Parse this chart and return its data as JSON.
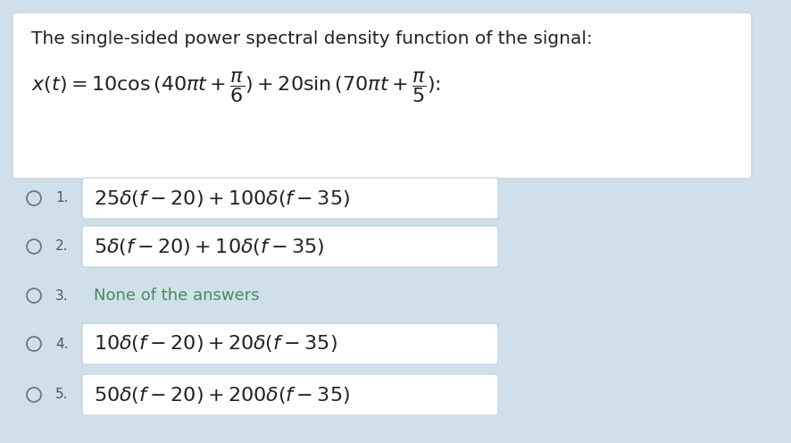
{
  "bg_color": "#cfe0ea",
  "question_box_bg": "#ffffff",
  "question_box_border": "#c8d8e0",
  "answer_box_bg": "#ffffff",
  "answer_box_border": "#c0d0dc",
  "question_title": "The single-sided power spectral density function of the signal:",
  "options": [
    {
      "num": "1.",
      "text": "$25\\delta(f-20)+100\\delta(f-35)$",
      "display": "$25\\delta(f - 20) + 100\\delta(f - 35)$",
      "has_box": true
    },
    {
      "num": "2.",
      "text": "$5\\delta(f-20)+10\\delta(f-35)$",
      "display": "$5\\delta(f - 20) + 10\\delta(f - 35)$",
      "has_box": true
    },
    {
      "num": "3.",
      "text": "None of the answers",
      "display": "None of the answers",
      "has_box": false
    },
    {
      "num": "4.",
      "text": "$10\\delta(f-20)+20\\delta(f-35)$",
      "display": "$10\\delta(f - 20) + 20\\delta(f - 35)$",
      "has_box": true
    },
    {
      "num": "5.",
      "text": "$50\\delta(f-20)+200\\delta(f-35)$",
      "display": "$50\\delta(f - 20) + 200\\delta(f - 35)$",
      "has_box": true
    }
  ],
  "circle_color": "#777777",
  "num_color": "#555555",
  "text_color": "#222222",
  "option3_color": "#4a8a5a",
  "title_fontsize": 14.5,
  "formula_fontsize": 16,
  "option_fontsize": 16,
  "option3_fontsize": 13,
  "num_fontsize": 11
}
